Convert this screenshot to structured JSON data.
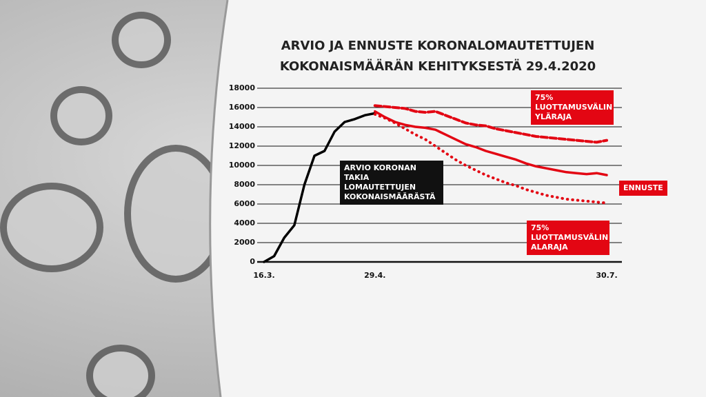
{
  "chart_data": {
    "type": "line",
    "title": "ARVIO JA ENNUSTE KORONALOMAUTETTUJEN KOKONAISMÄÄRÄN KEHITYKSESTÄ 29.4.2020",
    "categories": [
      "16.3.",
      null,
      null,
      null,
      null,
      null,
      null,
      null,
      null,
      null,
      null,
      "29.4.",
      null,
      null,
      null,
      null,
      null,
      null,
      null,
      null,
      null,
      null,
      null,
      null,
      null,
      null,
      null,
      null,
      null,
      null,
      null,
      null,
      null,
      null,
      "30.7."
    ],
    "ylim": [
      0,
      18000
    ],
    "yticks": [
      0,
      2000,
      4000,
      6000,
      8000,
      10000,
      12000,
      14000,
      16000,
      18000
    ],
    "grid": true,
    "series": [
      {
        "name": "ARVIO KORONAN TAKIA LOMAUTETTUJEN KOKONAISMÄÄRÄSTÄ",
        "color": "#000000",
        "dash": "solid",
        "values": [
          0,
          600,
          2500,
          3800,
          8000,
          11000,
          11500,
          13500,
          14500,
          14800,
          15200,
          15400,
          null,
          null,
          null,
          null,
          null,
          null,
          null,
          null,
          null,
          null,
          null,
          null,
          null,
          null,
          null,
          null,
          null,
          null,
          null,
          null,
          null,
          null,
          null
        ]
      },
      {
        "name": "ENNUSTE",
        "color": "#e30613",
        "dash": "solid",
        "values": [
          null,
          null,
          null,
          null,
          null,
          null,
          null,
          null,
          null,
          null,
          null,
          15600,
          15000,
          14500,
          14200,
          14000,
          13900,
          13700,
          13200,
          12700,
          12200,
          11900,
          11500,
          11200,
          10900,
          10600,
          10200,
          9900,
          9700,
          9500,
          9300,
          9200,
          9100,
          9200,
          9000
        ]
      },
      {
        "name": "75% LUOTTAMUSVÄLIN YLÄRAJA",
        "color": "#e30613",
        "dash": "dashed",
        "values": [
          null,
          null,
          null,
          null,
          null,
          null,
          null,
          null,
          null,
          null,
          null,
          16200,
          16100,
          16000,
          15900,
          15600,
          15500,
          15600,
          15200,
          14800,
          14400,
          14200,
          14100,
          13800,
          13600,
          13400,
          13200,
          13000,
          12900,
          12800,
          12700,
          12600,
          12500,
          12400,
          12600
        ]
      },
      {
        "name": "75% LUOTTAMUSVÄLIN ALARAJA",
        "color": "#e30613",
        "dash": "dotted",
        "values": [
          null,
          null,
          null,
          null,
          null,
          null,
          null,
          null,
          null,
          null,
          null,
          15300,
          14900,
          14400,
          13800,
          13200,
          12700,
          12000,
          11300,
          10600,
          10000,
          9500,
          9000,
          8600,
          8200,
          7900,
          7500,
          7200,
          6900,
          6700,
          6500,
          6400,
          6300,
          6200,
          6100
        ]
      }
    ]
  }
}
